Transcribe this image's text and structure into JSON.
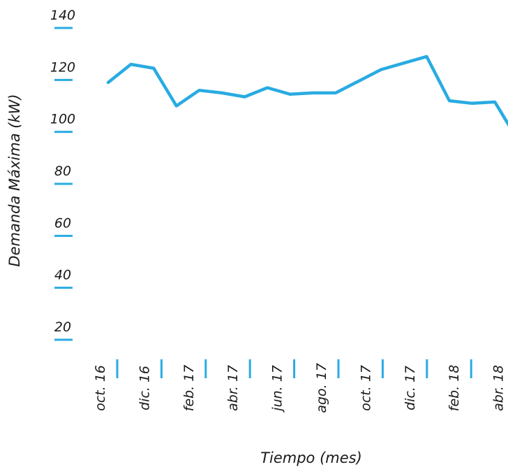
{
  "chart_data": {
    "type": "line",
    "title": "",
    "xlabel": "Tiempo (mes)",
    "ylabel": "Demanda Máxima (kW)",
    "ylim": [
      20,
      140
    ],
    "y_ticks": [
      140,
      120,
      100,
      80,
      60,
      40,
      20
    ],
    "x_tick_labels": [
      "oct. 16",
      "dic. 16",
      "feb. 17",
      "abr. 17",
      "jun. 17",
      "ago. 17",
      "oct. 17",
      "dic. 17",
      "feb. 18",
      "abr. 18"
    ],
    "grid": false,
    "legend": "none",
    "line_color": "#29abe2",
    "series": [
      {
        "x": [
          "oct. 16",
          "nov. 16",
          "dic. 16",
          "ene. 17",
          "feb. 17",
          "mar. 17",
          "abr. 17",
          "may. 17",
          "jun. 17",
          "jul. 17",
          "ago. 17",
          "sep. 17",
          "oct. 17",
          "nov. 17",
          "dic. 17",
          "ene. 18",
          "feb. 18",
          "mar. 18",
          "abr. 18"
        ],
        "values": [
          119,
          126,
          124.5,
          110,
          116,
          115,
          113.5,
          117,
          114.5,
          115,
          115,
          119.5,
          124,
          126.5,
          129,
          112,
          111,
          111.5,
          97
        ]
      }
    ]
  }
}
